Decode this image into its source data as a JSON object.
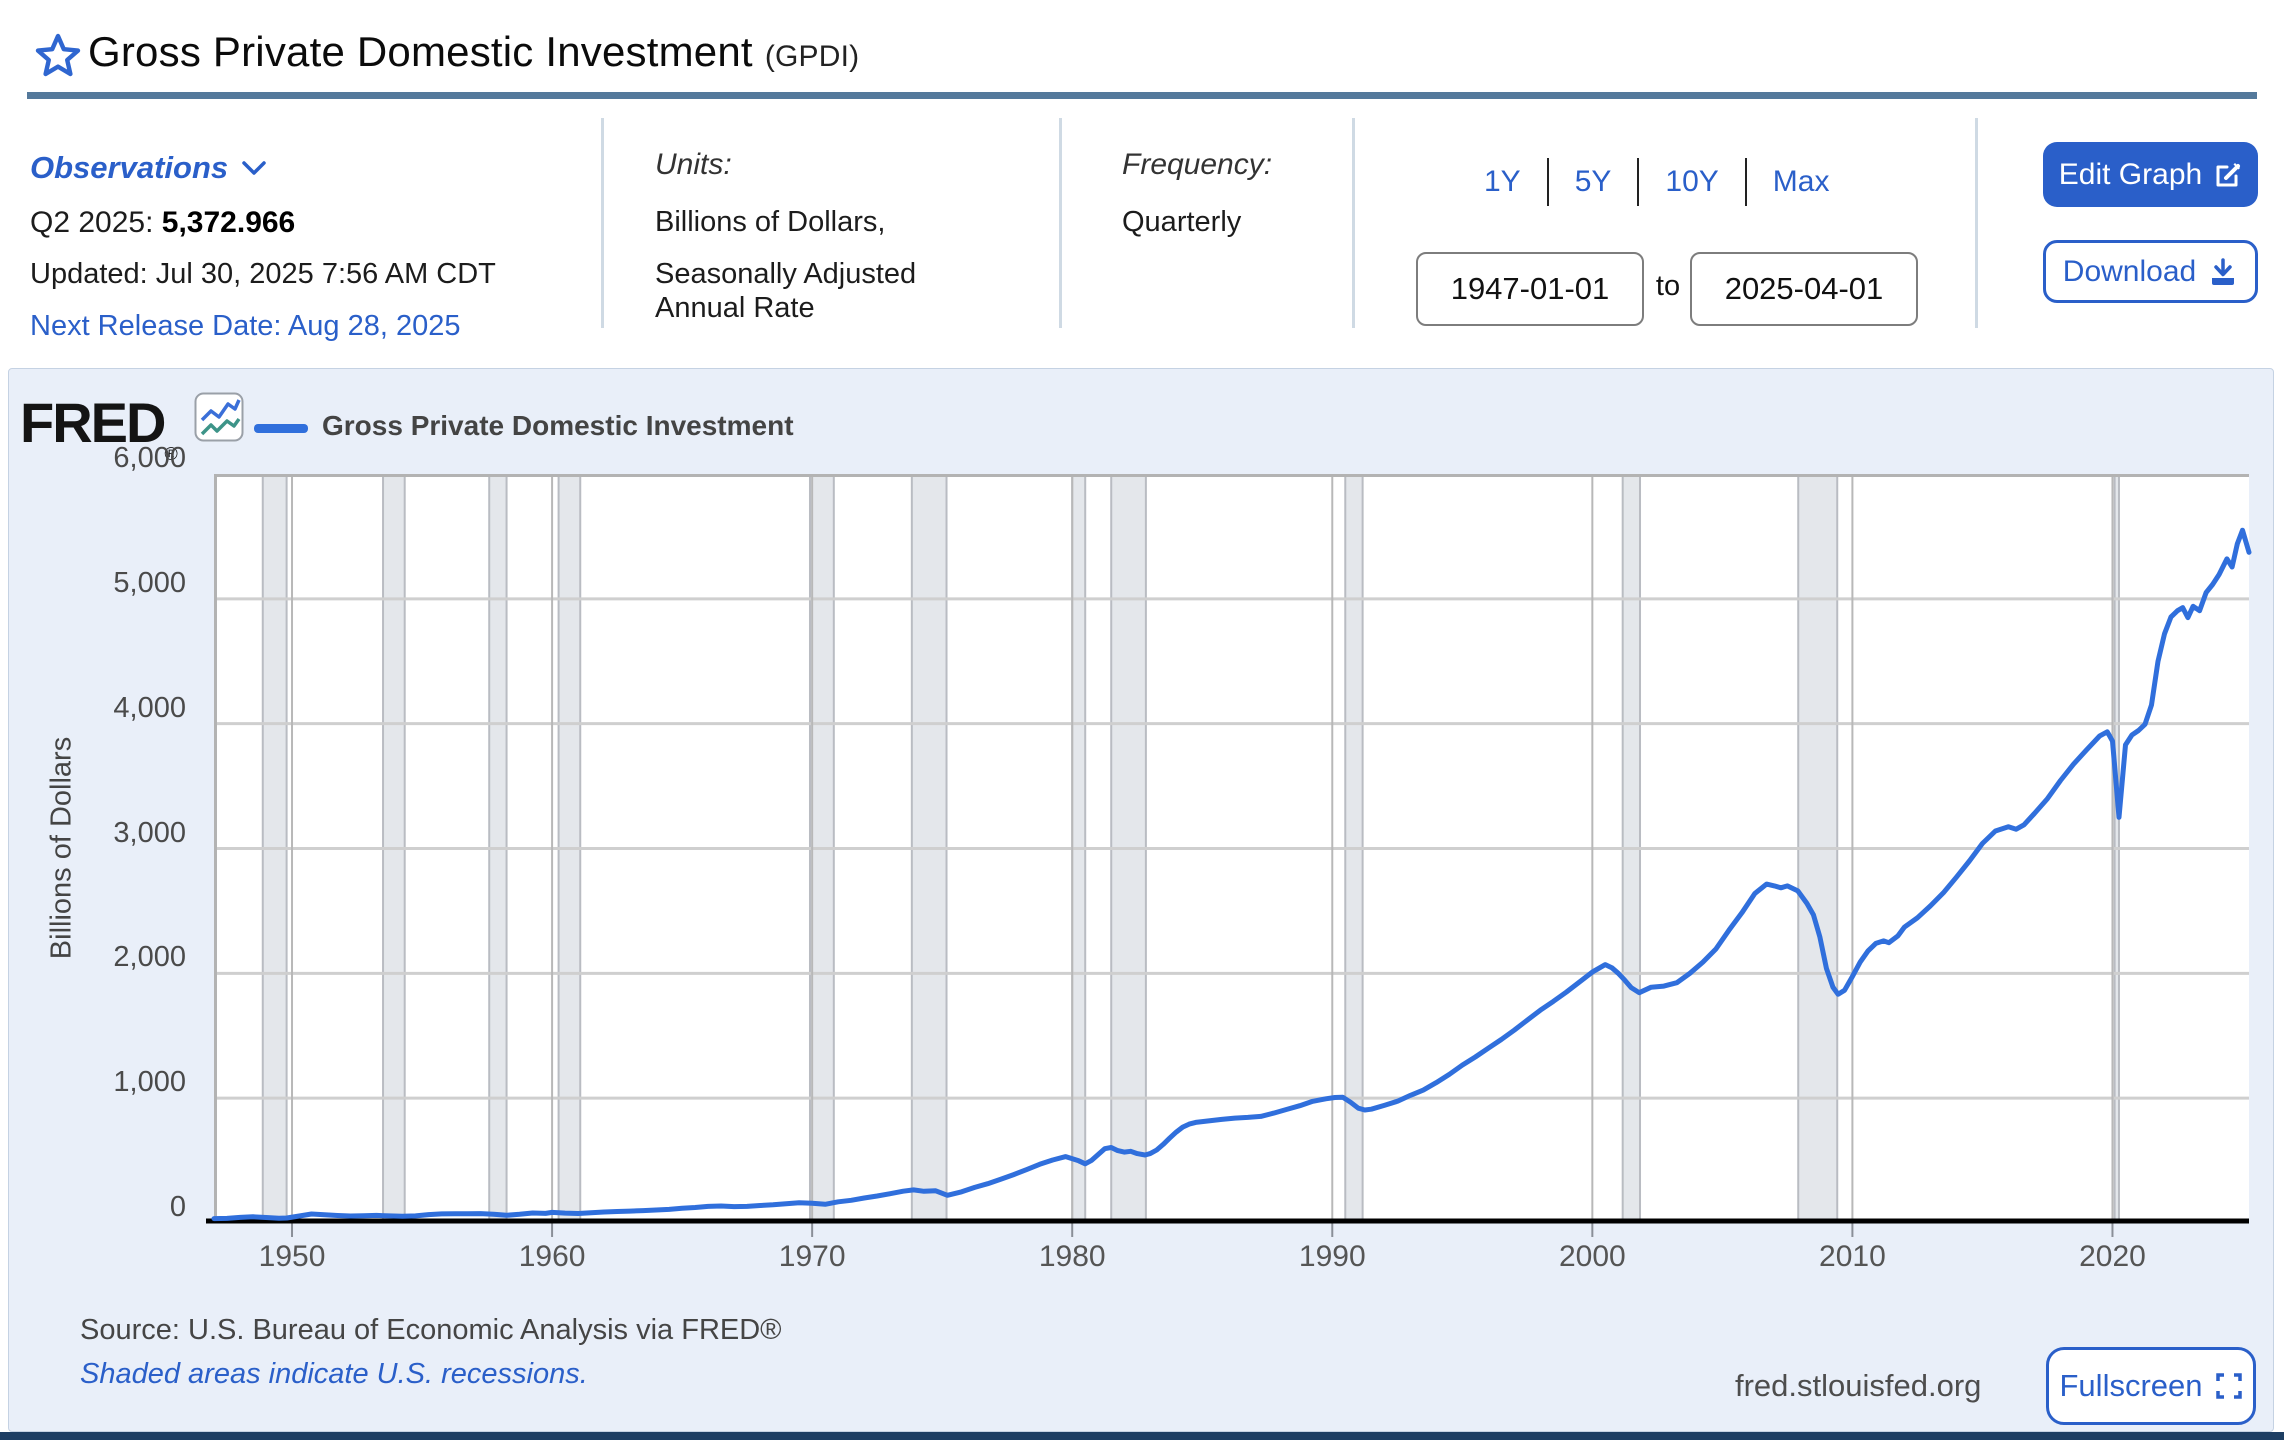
{
  "page": {
    "title": "Gross Private Domestic Investment",
    "title_suffix": "(GPDI)"
  },
  "observations": {
    "label": "Observations",
    "latest_period": "Q2 2025:",
    "latest_value": "5,372.966",
    "updated": "Updated: Jul 30, 2025 7:56 AM CDT",
    "next_release": "Next Release Date: Aug 28, 2025"
  },
  "units": {
    "label": "Units:",
    "line1": "Billions of Dollars,",
    "line2": "Seasonally Adjusted",
    "line3": "Annual Rate"
  },
  "frequency": {
    "label": "Frequency:",
    "value": "Quarterly"
  },
  "range": {
    "presets": [
      "1Y",
      "5Y",
      "10Y",
      "Max"
    ],
    "start": "1947-01-01",
    "to_label": "to",
    "end": "2025-04-01"
  },
  "actions": {
    "edit_graph": "Edit Graph",
    "download": "Download"
  },
  "chart_header": {
    "logo": "FRED",
    "logo_reg": "®",
    "legend_label": "Gross Private Domestic Investment"
  },
  "chart_footer": {
    "source": "Source: U.S. Bureau of Economic Analysis via FRED®",
    "recession_note": "Shaded areas indicate U.S. recessions.",
    "site": "fred.stlouisfed.org",
    "fullscreen": "Fullscreen"
  },
  "colors": {
    "accent": "#2a5fc9",
    "line": "#306fdc",
    "slate": "#54799b",
    "panel": "#e9eff9",
    "navy": "#1d3e63",
    "recession": "#e4e7eb",
    "recession_edge": "#b9bcc2",
    "grid": "#cfcfcf",
    "plot_border": "#b3b3b3",
    "axis": "#000000"
  },
  "chart_data": {
    "type": "line",
    "title": "Gross Private Domestic Investment",
    "xlabel": "",
    "ylabel": "Billions of Dollars",
    "legend_position": "top-left",
    "grid": true,
    "x_min": 1947,
    "x_max": 2025.25,
    "ylim": [
      0,
      6000
    ],
    "yticks": [
      0,
      1000,
      2000,
      3000,
      4000,
      5000,
      6000
    ],
    "ytick_labels": [
      "0",
      "1,000",
      "2,000",
      "3,000",
      "4,000",
      "5,000",
      "6,000"
    ],
    "xticks": [
      1950,
      1960,
      1970,
      1980,
      1990,
      2000,
      2010,
      2020
    ],
    "recessions": [
      [
        1948.875,
        1949.792
      ],
      [
        1953.5,
        1954.333
      ],
      [
        1957.583,
        1958.25
      ],
      [
        1960.25,
        1961.083
      ],
      [
        1969.917,
        1970.833
      ],
      [
        1973.833,
        1975.167
      ],
      [
        1980.0,
        1980.5
      ],
      [
        1981.5,
        1982.833
      ],
      [
        1990.5,
        1991.167
      ],
      [
        2001.167,
        2001.833
      ],
      [
        2007.917,
        2009.417
      ],
      [
        2020.083,
        2020.25
      ]
    ],
    "series": [
      {
        "name": "Gross Private Domestic Investment",
        "points": [
          [
            1947.0,
            35
          ],
          [
            1947.5,
            37
          ],
          [
            1948.0,
            45
          ],
          [
            1948.5,
            50
          ],
          [
            1949.0,
            44
          ],
          [
            1949.5,
            38
          ],
          [
            1949.8,
            40
          ],
          [
            1950.25,
            55
          ],
          [
            1950.75,
            72
          ],
          [
            1951.25,
            66
          ],
          [
            1951.75,
            60
          ],
          [
            1952.25,
            56
          ],
          [
            1952.75,
            58
          ],
          [
            1953.25,
            61
          ],
          [
            1953.75,
            57
          ],
          [
            1954.25,
            54
          ],
          [
            1954.75,
            57
          ],
          [
            1955.25,
            67
          ],
          [
            1955.75,
            73
          ],
          [
            1956.25,
            74
          ],
          [
            1956.75,
            74
          ],
          [
            1957.25,
            75
          ],
          [
            1957.75,
            70
          ],
          [
            1958.25,
            62
          ],
          [
            1958.75,
            70
          ],
          [
            1959.25,
            80
          ],
          [
            1959.75,
            77
          ],
          [
            1960.0,
            85
          ],
          [
            1960.5,
            79
          ],
          [
            1961.0,
            76
          ],
          [
            1961.5,
            82
          ],
          [
            1962.0,
            88
          ],
          [
            1962.5,
            92
          ],
          [
            1963.0,
            95
          ],
          [
            1963.5,
            99
          ],
          [
            1964.0,
            104
          ],
          [
            1964.5,
            109
          ],
          [
            1965.0,
            118
          ],
          [
            1965.5,
            124
          ],
          [
            1966.0,
            133
          ],
          [
            1966.5,
            136
          ],
          [
            1967.0,
            131
          ],
          [
            1967.5,
            133
          ],
          [
            1968.0,
            140
          ],
          [
            1968.5,
            146
          ],
          [
            1969.0,
            155
          ],
          [
            1969.5,
            162
          ],
          [
            1970.0,
            158
          ],
          [
            1970.5,
            150
          ],
          [
            1971.0,
            170
          ],
          [
            1971.5,
            182
          ],
          [
            1972.0,
            200
          ],
          [
            1972.5,
            216
          ],
          [
            1973.0,
            235
          ],
          [
            1973.5,
            255
          ],
          [
            1973.9,
            265
          ],
          [
            1974.3,
            254
          ],
          [
            1974.75,
            258
          ],
          [
            1975.2,
            222
          ],
          [
            1975.75,
            250
          ],
          [
            1976.25,
            285
          ],
          [
            1976.75,
            315
          ],
          [
            1977.25,
            350
          ],
          [
            1977.75,
            388
          ],
          [
            1978.25,
            428
          ],
          [
            1978.75,
            470
          ],
          [
            1979.25,
            505
          ],
          [
            1979.75,
            532
          ],
          [
            1980.25,
            498
          ],
          [
            1980.5,
            474
          ],
          [
            1980.75,
            502
          ],
          [
            1981.25,
            595
          ],
          [
            1981.5,
            605
          ],
          [
            1981.75,
            580
          ],
          [
            1982.0,
            568
          ],
          [
            1982.25,
            574
          ],
          [
            1982.5,
            556
          ],
          [
            1982.8,
            545
          ],
          [
            1983.0,
            556
          ],
          [
            1983.25,
            585
          ],
          [
            1983.5,
            630
          ],
          [
            1983.75,
            680
          ],
          [
            1984.0,
            728
          ],
          [
            1984.25,
            768
          ],
          [
            1984.5,
            792
          ],
          [
            1984.75,
            806
          ],
          [
            1985.25,
            818
          ],
          [
            1985.75,
            830
          ],
          [
            1986.25,
            840
          ],
          [
            1986.75,
            846
          ],
          [
            1987.25,
            854
          ],
          [
            1987.75,
            880
          ],
          [
            1988.25,
            910
          ],
          [
            1988.75,
            940
          ],
          [
            1989.25,
            975
          ],
          [
            1989.75,
            995
          ],
          [
            1990.1,
            1005
          ],
          [
            1990.4,
            1008
          ],
          [
            1990.7,
            968
          ],
          [
            1991.0,
            920
          ],
          [
            1991.25,
            905
          ],
          [
            1991.5,
            912
          ],
          [
            1992.0,
            942
          ],
          [
            1992.5,
            975
          ],
          [
            1993.0,
            1022
          ],
          [
            1993.5,
            1065
          ],
          [
            1994.0,
            1125
          ],
          [
            1994.5,
            1190
          ],
          [
            1995.0,
            1265
          ],
          [
            1995.5,
            1330
          ],
          [
            1996.0,
            1400
          ],
          [
            1996.5,
            1470
          ],
          [
            1997.0,
            1545
          ],
          [
            1997.5,
            1625
          ],
          [
            1998.0,
            1705
          ],
          [
            1998.5,
            1775
          ],
          [
            1999.0,
            1850
          ],
          [
            1999.5,
            1930
          ],
          [
            2000.0,
            2010
          ],
          [
            2000.5,
            2070
          ],
          [
            2000.75,
            2045
          ],
          [
            2001.0,
            2000
          ],
          [
            2001.25,
            1945
          ],
          [
            2001.5,
            1885
          ],
          [
            2001.8,
            1845
          ],
          [
            2002.25,
            1888
          ],
          [
            2002.75,
            1898
          ],
          [
            2003.25,
            1925
          ],
          [
            2003.75,
            2000
          ],
          [
            2004.25,
            2090
          ],
          [
            2004.75,
            2195
          ],
          [
            2005.25,
            2345
          ],
          [
            2005.75,
            2485
          ],
          [
            2006.25,
            2640
          ],
          [
            2006.7,
            2715
          ],
          [
            2007.0,
            2700
          ],
          [
            2007.25,
            2685
          ],
          [
            2007.5,
            2700
          ],
          [
            2007.9,
            2660
          ],
          [
            2008.25,
            2560
          ],
          [
            2008.5,
            2470
          ],
          [
            2008.75,
            2290
          ],
          [
            2009.0,
            2040
          ],
          [
            2009.25,
            1890
          ],
          [
            2009.45,
            1832
          ],
          [
            2009.7,
            1865
          ],
          [
            2010.0,
            1975
          ],
          [
            2010.3,
            2090
          ],
          [
            2010.6,
            2180
          ],
          [
            2010.9,
            2240
          ],
          [
            2011.2,
            2260
          ],
          [
            2011.4,
            2245
          ],
          [
            2011.75,
            2300
          ],
          [
            2012.0,
            2370
          ],
          [
            2012.5,
            2445
          ],
          [
            2013.0,
            2540
          ],
          [
            2013.5,
            2645
          ],
          [
            2014.0,
            2770
          ],
          [
            2014.5,
            2900
          ],
          [
            2015.0,
            3040
          ],
          [
            2015.5,
            3140
          ],
          [
            2016.0,
            3175
          ],
          [
            2016.3,
            3155
          ],
          [
            2016.6,
            3190
          ],
          [
            2017.0,
            3280
          ],
          [
            2017.5,
            3400
          ],
          [
            2018.0,
            3545
          ],
          [
            2018.5,
            3675
          ],
          [
            2019.0,
            3790
          ],
          [
            2019.5,
            3900
          ],
          [
            2019.8,
            3935
          ],
          [
            2020.0,
            3860
          ],
          [
            2020.25,
            3250
          ],
          [
            2020.5,
            3830
          ],
          [
            2020.75,
            3910
          ],
          [
            2021.0,
            3945
          ],
          [
            2021.25,
            3995
          ],
          [
            2021.5,
            4150
          ],
          [
            2021.75,
            4500
          ],
          [
            2022.0,
            4720
          ],
          [
            2022.25,
            4855
          ],
          [
            2022.5,
            4905
          ],
          [
            2022.7,
            4930
          ],
          [
            2022.9,
            4850
          ],
          [
            2023.1,
            4940
          ],
          [
            2023.35,
            4905
          ],
          [
            2023.6,
            5050
          ],
          [
            2023.85,
            5115
          ],
          [
            2024.1,
            5195
          ],
          [
            2024.4,
            5320
          ],
          [
            2024.6,
            5255
          ],
          [
            2024.8,
            5440
          ],
          [
            2025.0,
            5550
          ],
          [
            2025.25,
            5373
          ]
        ]
      }
    ]
  }
}
